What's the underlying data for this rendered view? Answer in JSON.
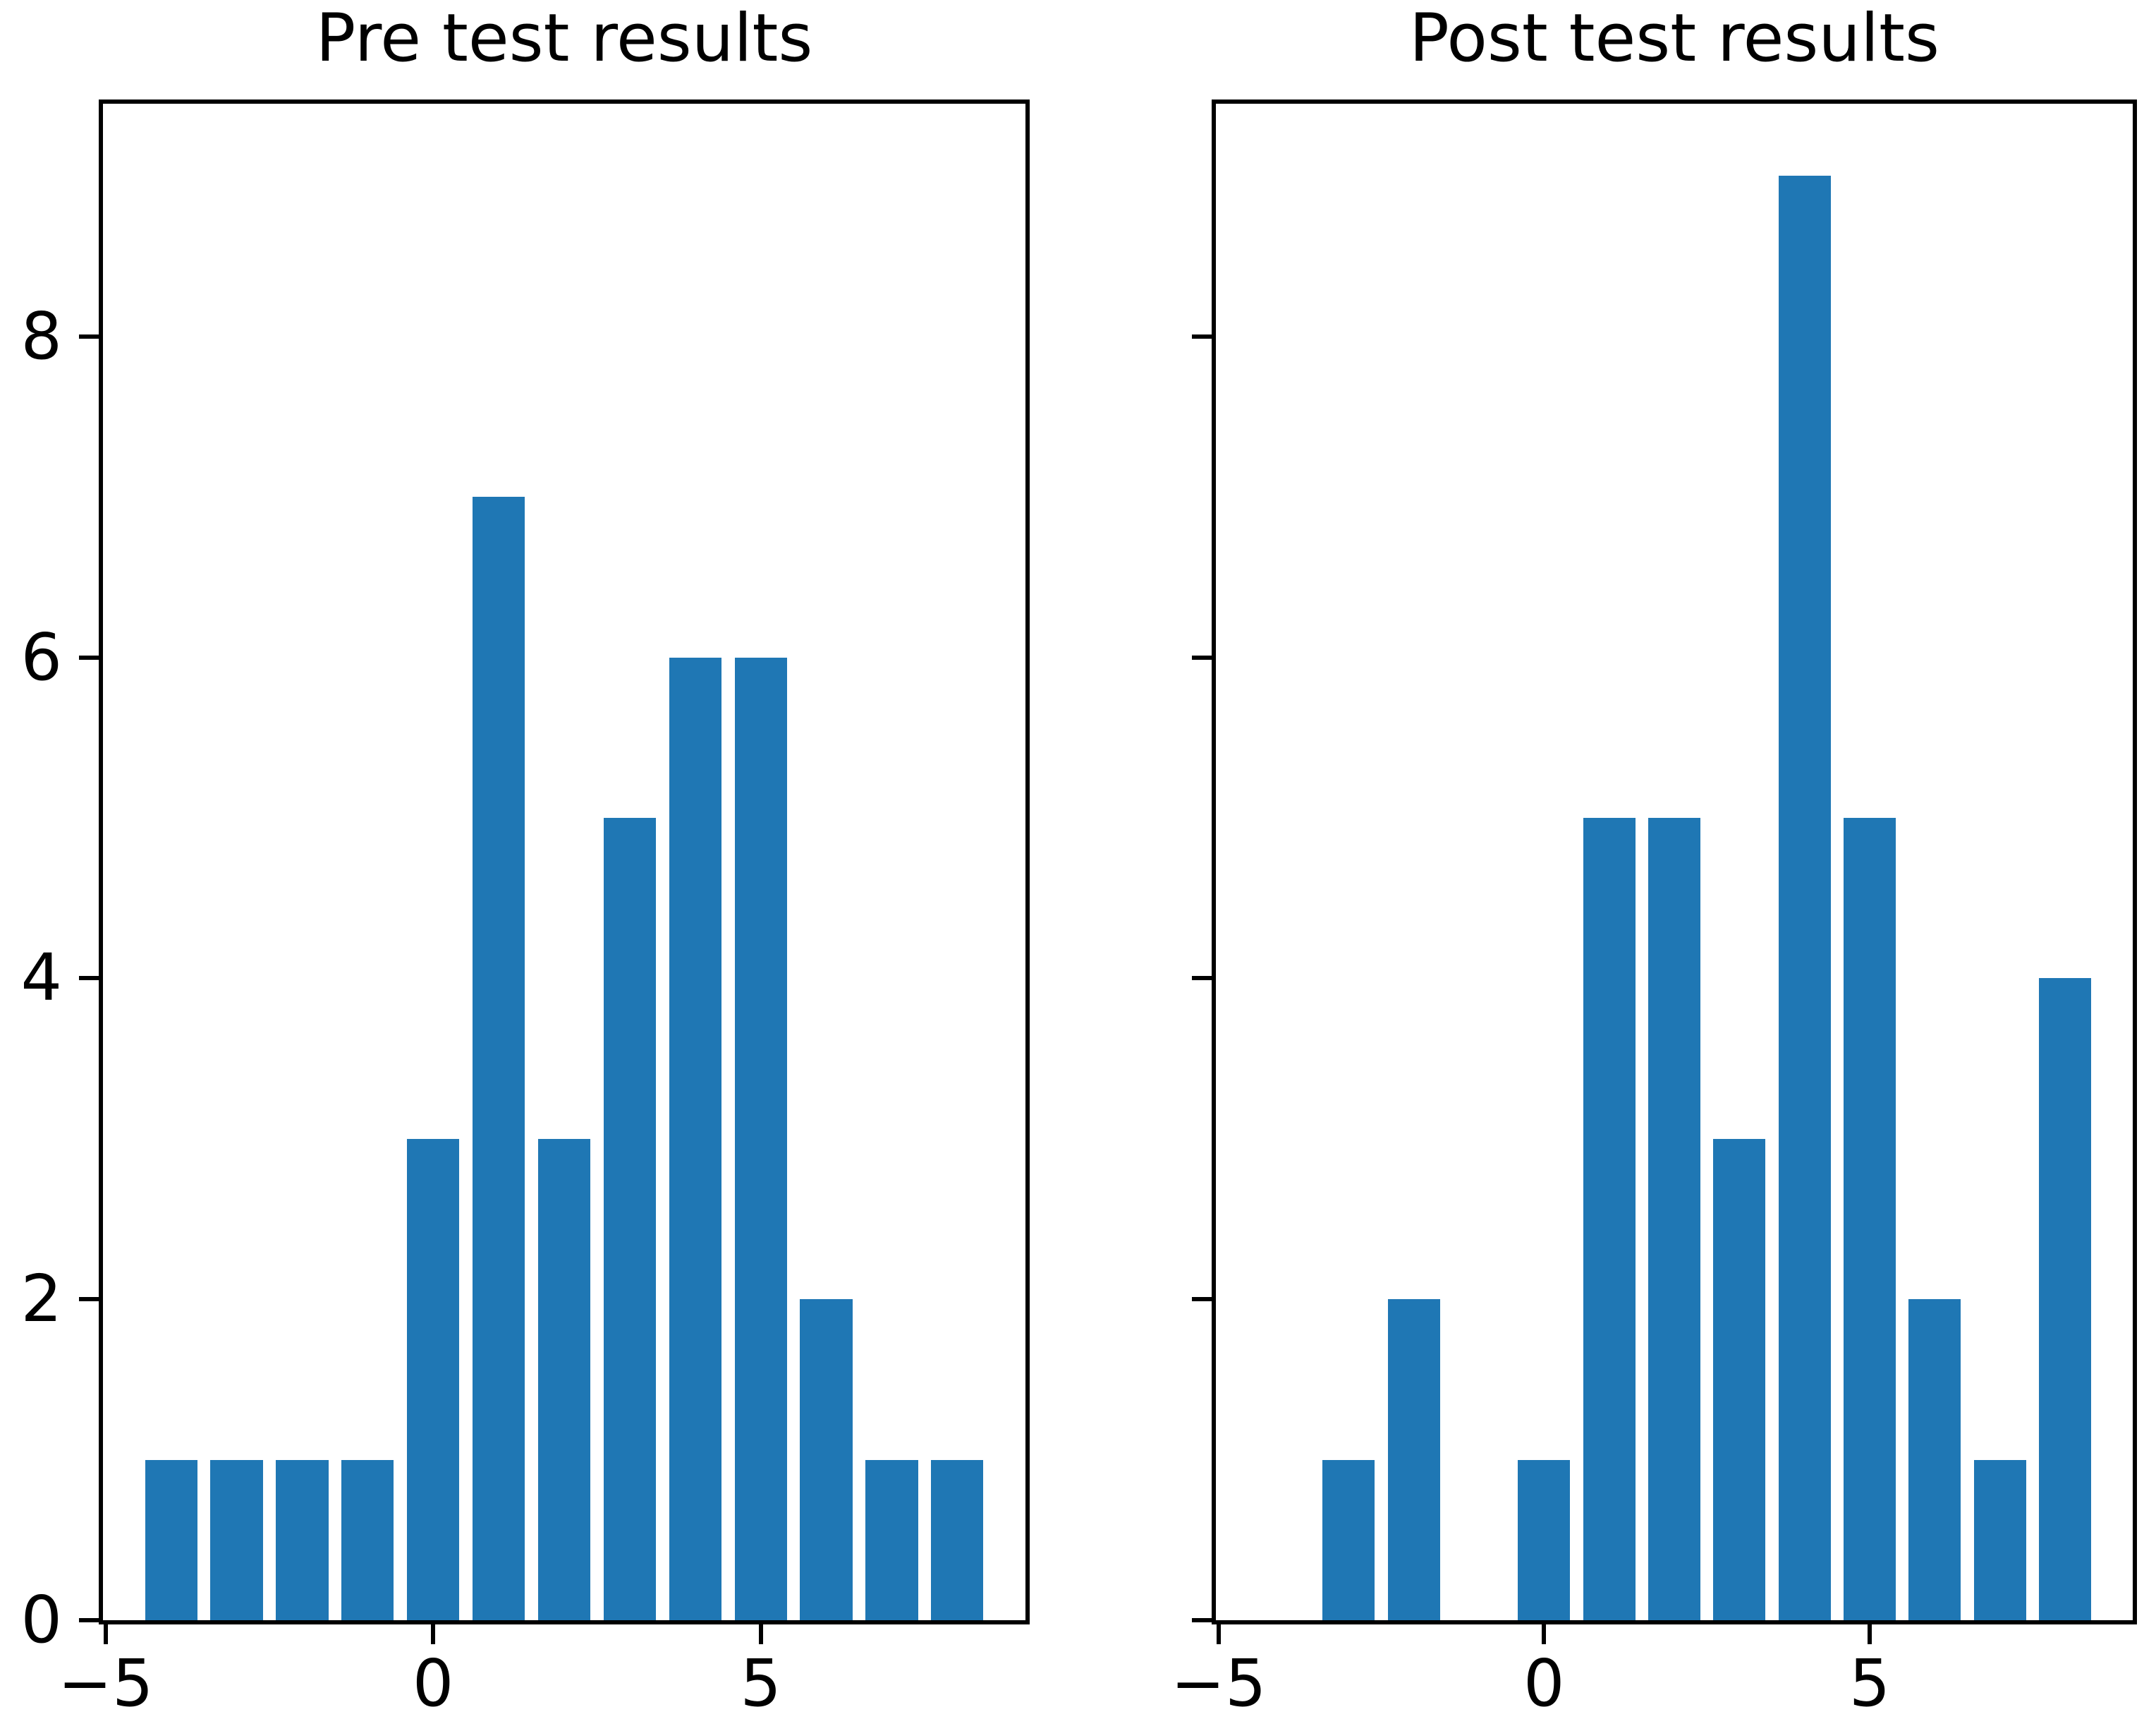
{
  "figure": {
    "background": "#ffffff",
    "text_color": "#000000",
    "spine_color": "#000000"
  },
  "chart_data": [
    {
      "type": "bar",
      "subtype": "histogram",
      "title": "Pre test results",
      "x": [
        -4,
        -3,
        -2,
        -1,
        0,
        1,
        2,
        3,
        4,
        5,
        6,
        7,
        8
      ],
      "counts": [
        1,
        1,
        1,
        1,
        3,
        7,
        3,
        5,
        6,
        6,
        2,
        1,
        1
      ],
      "bar_color": "#1f77b4",
      "bar_width": 0.8,
      "xlim": [
        -5.04,
        9.04
      ],
      "ylim": [
        0,
        9.45
      ],
      "xticks": [
        -5,
        0,
        5
      ],
      "xtick_labels": [
        "−5",
        "0",
        "5"
      ],
      "yticks": [
        0,
        2,
        4,
        6,
        8
      ],
      "ytick_labels": [
        "0",
        "2",
        "4",
        "6",
        "8"
      ],
      "show_ytick_labels": true,
      "grid": false,
      "legend": false
    },
    {
      "type": "bar",
      "subtype": "histogram",
      "title": "Post test results",
      "x": [
        -3,
        -2,
        -1,
        0,
        1,
        2,
        3,
        4,
        5,
        6,
        7,
        8
      ],
      "counts": [
        1,
        2,
        0,
        1,
        5,
        5,
        3,
        9,
        5,
        2,
        1,
        4
      ],
      "bar_color": "#1f77b4",
      "bar_width": 0.8,
      "xlim": [
        -5.04,
        9.04
      ],
      "ylim": [
        0,
        9.45
      ],
      "xticks": [
        -5,
        0,
        5
      ],
      "xtick_labels": [
        "−5",
        "0",
        "5"
      ],
      "yticks": [
        0,
        2,
        4,
        6,
        8
      ],
      "ytick_labels": [
        "0",
        "2",
        "4",
        "6",
        "8"
      ],
      "show_ytick_labels": false,
      "grid": false,
      "legend": false
    }
  ]
}
